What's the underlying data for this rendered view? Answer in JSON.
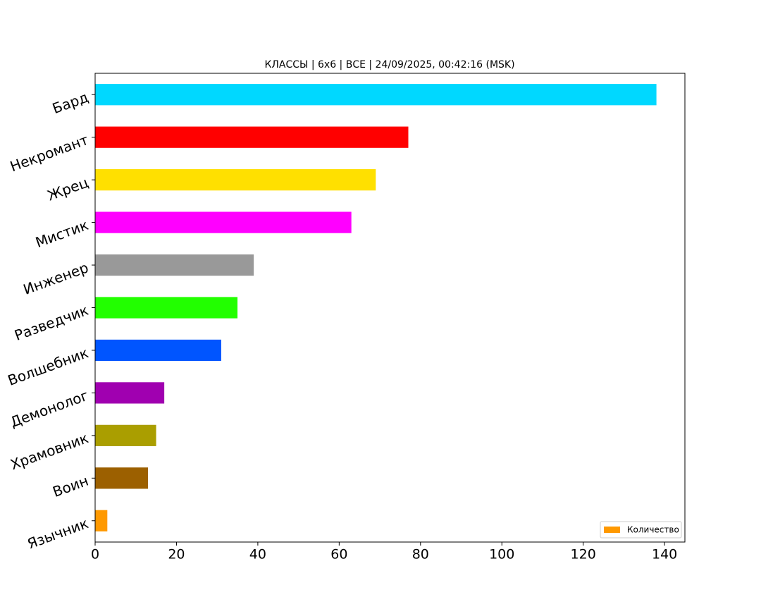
{
  "chart_data": {
    "type": "barh",
    "title": "КЛАССЫ | 6x6 | ВСЕ | 24/09/2025, 00:42:16 (MSK)",
    "categories": [
      "Язычник",
      "Воин",
      "Храмовник",
      "Демонолог",
      "Волшебник",
      "Разведчик",
      "Инженер",
      "Мистик",
      "Жрец",
      "Некромант",
      "Бард"
    ],
    "series": [
      {
        "name": "Количество",
        "colors": [
          "#ff9900",
          "#9c6000",
          "#aa9e00",
          "#a000b0",
          "#0055ff",
          "#22ff00",
          "#999999",
          "#ff00ff",
          "#ffe000",
          "#ff0000",
          "#00d8ff"
        ],
        "values": [
          3,
          13,
          15,
          17,
          31,
          35,
          39,
          63,
          69,
          77,
          138
        ]
      }
    ],
    "xlim": [
      0,
      145
    ],
    "xticks": [
      0,
      20,
      40,
      60,
      80,
      100,
      120,
      140
    ],
    "legend": "lower right"
  }
}
